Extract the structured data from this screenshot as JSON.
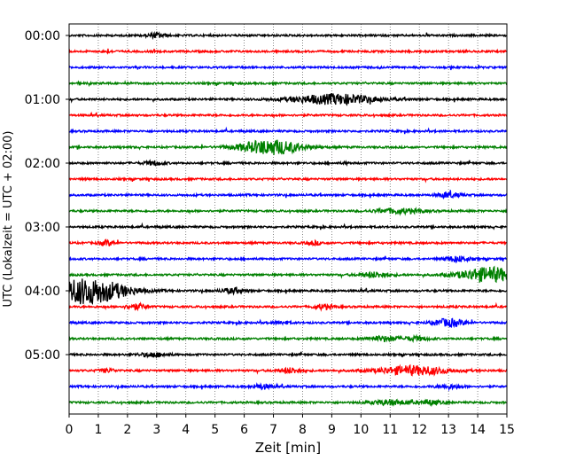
{
  "chart_data": {
    "type": "line",
    "title": "",
    "xlabel": "Zeit  [min]",
    "ylabel": "UTC (Lokalzeit = UTC + 02:00)",
    "xlim": [
      0,
      15
    ],
    "x_ticks": [
      0,
      1,
      2,
      3,
      4,
      5,
      6,
      7,
      8,
      9,
      10,
      11,
      12,
      13,
      14,
      15
    ],
    "y_tick_labels": [
      "00:00",
      "01:00",
      "02:00",
      "03:00",
      "04:00",
      "05:00"
    ],
    "y_tick_rows": [
      0,
      4,
      8,
      12,
      16,
      20
    ],
    "minutes_per_trace": 15,
    "trace_count": 24,
    "grid": "vertical dotted",
    "trace_colors": [
      "#000000",
      "#ff0000",
      "#0000ff",
      "#008000"
    ],
    "events": [
      {
        "trace": 0,
        "t": 3.0,
        "amp": 0.25,
        "dur": 0.5
      },
      {
        "trace": 1,
        "t": 1.3,
        "amp": 0.12,
        "dur": 0.3
      },
      {
        "trace": 4,
        "t": 9.1,
        "amp": 0.6,
        "dur": 2.2
      },
      {
        "trace": 7,
        "t": 6.9,
        "amp": 0.9,
        "dur": 1.6
      },
      {
        "trace": 8,
        "t": 2.9,
        "amp": 0.25,
        "dur": 0.5
      },
      {
        "trace": 8,
        "t": 9.5,
        "amp": 0.1,
        "dur": 0.2
      },
      {
        "trace": 10,
        "t": 13.0,
        "amp": 0.3,
        "dur": 0.6
      },
      {
        "trace": 11,
        "t": 11.3,
        "amp": 0.3,
        "dur": 1.2
      },
      {
        "trace": 13,
        "t": 1.3,
        "amp": 0.3,
        "dur": 0.4
      },
      {
        "trace": 13,
        "t": 8.4,
        "amp": 0.2,
        "dur": 0.4
      },
      {
        "trace": 14,
        "t": 13.3,
        "amp": 0.35,
        "dur": 0.6
      },
      {
        "trace": 15,
        "t": 10.5,
        "amp": 0.3,
        "dur": 0.8
      },
      {
        "trace": 15,
        "t": 14.4,
        "amp": 0.9,
        "dur": 1.5
      },
      {
        "trace": 16,
        "t": 0.6,
        "amp": 1.6,
        "dur": 2.0
      },
      {
        "trace": 16,
        "t": 5.6,
        "amp": 0.3,
        "dur": 0.6
      },
      {
        "trace": 17,
        "t": 2.3,
        "amp": 0.35,
        "dur": 0.5
      },
      {
        "trace": 17,
        "t": 8.7,
        "amp": 0.3,
        "dur": 0.5
      },
      {
        "trace": 18,
        "t": 13.0,
        "amp": 0.45,
        "dur": 0.8
      },
      {
        "trace": 18,
        "t": 7.2,
        "amp": 0.15,
        "dur": 0.5
      },
      {
        "trace": 19,
        "t": 10.8,
        "amp": 0.3,
        "dur": 0.8
      },
      {
        "trace": 19,
        "t": 11.9,
        "amp": 0.25,
        "dur": 0.6
      },
      {
        "trace": 20,
        "t": 2.9,
        "amp": 0.25,
        "dur": 0.7
      },
      {
        "trace": 21,
        "t": 11.8,
        "amp": 0.55,
        "dur": 1.8
      },
      {
        "trace": 21,
        "t": 7.6,
        "amp": 0.3,
        "dur": 0.6
      },
      {
        "trace": 21,
        "t": 1.3,
        "amp": 0.2,
        "dur": 0.4
      },
      {
        "trace": 22,
        "t": 6.6,
        "amp": 0.3,
        "dur": 0.5
      },
      {
        "trace": 22,
        "t": 13.0,
        "amp": 0.25,
        "dur": 0.6
      },
      {
        "trace": 23,
        "t": 11.0,
        "amp": 0.3,
        "dur": 1.0
      },
      {
        "trace": 23,
        "t": 12.4,
        "amp": 0.25,
        "dur": 0.6
      }
    ]
  }
}
